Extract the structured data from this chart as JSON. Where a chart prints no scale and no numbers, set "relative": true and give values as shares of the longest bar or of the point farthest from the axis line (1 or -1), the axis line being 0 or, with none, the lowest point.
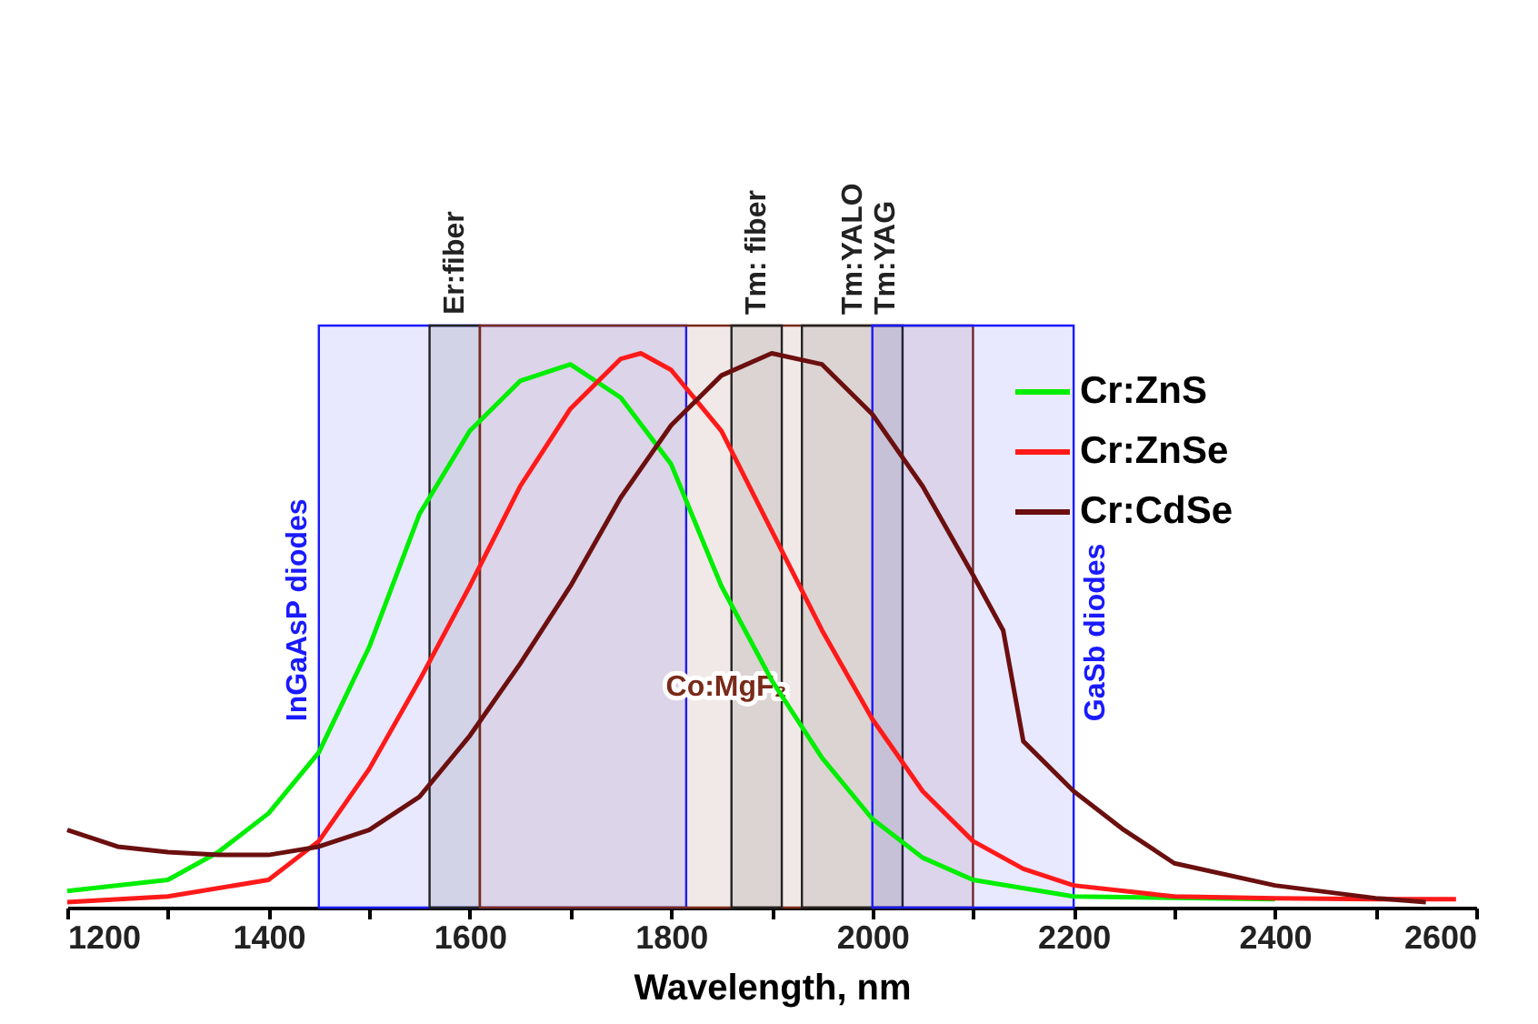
{
  "chart_data": {
    "type": "line",
    "xlabel": "Wavelength, nm",
    "relative": true,
    "xlim": [
      1200,
      2600
    ],
    "xticks": [
      1200,
      {
        "value": 1300,
        "label": null
      },
      1400,
      {
        "value": 1500,
        "label": null
      },
      1600,
      {
        "value": 1700,
        "label": null
      },
      1800,
      {
        "value": 1900,
        "label": null
      },
      2000,
      {
        "value": 2100,
        "label": null
      },
      2200,
      {
        "value": 2300,
        "label": null
      },
      2400,
      {
        "value": 2500,
        "label": null
      },
      2600
    ],
    "grid": false,
    "legend": "top right",
    "line_style": "solid",
    "marker": "none",
    "series": [
      {
        "name": "Cr:ZnS",
        "color": "#00ee00",
        "x": [
          1200,
          1300,
          1350,
          1400,
          1450,
          1500,
          1550,
          1600,
          1650,
          1700,
          1750,
          1800,
          1850,
          1900,
          1950,
          2000,
          2050,
          2100,
          2200,
          2400
        ],
        "values": [
          0.03,
          0.05,
          0.1,
          0.17,
          0.28,
          0.47,
          0.71,
          0.86,
          0.95,
          0.98,
          0.92,
          0.8,
          0.58,
          0.41,
          0.27,
          0.16,
          0.09,
          0.05,
          0.02,
          0.015
        ]
      },
      {
        "name": "Cr:ZnSe",
        "color": "#ff1a1a",
        "x": [
          1200,
          1300,
          1400,
          1450,
          1500,
          1550,
          1600,
          1650,
          1700,
          1750,
          1770,
          1800,
          1850,
          1900,
          1950,
          2000,
          2050,
          2100,
          2150,
          2200,
          2300,
          2400,
          2500,
          2580
        ],
        "values": [
          0.01,
          0.02,
          0.05,
          0.12,
          0.25,
          0.41,
          0.58,
          0.76,
          0.9,
          0.99,
          1,
          0.97,
          0.86,
          0.68,
          0.5,
          0.34,
          0.21,
          0.12,
          0.07,
          0.04,
          0.02,
          0.017,
          0.015,
          0.015
        ]
      },
      {
        "name": "Cr:CdSe",
        "color": "#6b0f0f",
        "x": [
          1200,
          1250,
          1300,
          1350,
          1400,
          1450,
          1500,
          1550,
          1600,
          1650,
          1700,
          1750,
          1800,
          1850,
          1900,
          1950,
          2000,
          2050,
          2100,
          2130,
          2150,
          2200,
          2250,
          2300,
          2400,
          2500,
          2550
        ],
        "values": [
          0.14,
          0.11,
          0.1,
          0.095,
          0.095,
          0.11,
          0.14,
          0.2,
          0.31,
          0.44,
          0.58,
          0.74,
          0.87,
          0.96,
          1,
          0.98,
          0.89,
          0.76,
          0.6,
          0.5,
          0.3,
          0.21,
          0.14,
          0.08,
          0.04,
          0.017,
          0.01
        ]
      }
    ],
    "bands": [
      {
        "axis": "x",
        "from": 1450,
        "to": 1815,
        "label": "InGaAsP diodes",
        "color": "#1a1aff"
      },
      {
        "axis": "x",
        "from": 1560,
        "to": 1610,
        "label": "Er:fiber",
        "color": "#222222"
      },
      {
        "axis": "x",
        "from": 1610,
        "to": 2100,
        "label": "Co:MgF₂",
        "color": "#7a2a1a"
      },
      {
        "axis": "x",
        "from": 1860,
        "to": 1910,
        "label": "Tm: fiber",
        "color": "#222222"
      },
      {
        "axis": "x",
        "from": 1930,
        "to": 2030,
        "label": "Tm:YALO\nTm:YAG",
        "color": "#222222"
      },
      {
        "axis": "x",
        "from": 2000,
        "to": 2200,
        "label": "GaSb diodes",
        "color": "#1a1aff"
      }
    ]
  }
}
